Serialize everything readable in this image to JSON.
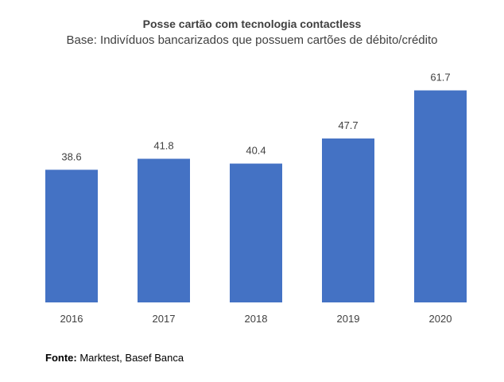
{
  "chart_data": {
    "type": "bar",
    "title": "Posse cartão com tecnologia contactless",
    "subtitle": "Base: Indivíduos bancarizados que possuem cartões de débito/crédito",
    "categories": [
      "2016",
      "2017",
      "2018",
      "2019",
      "2020"
    ],
    "values": [
      38.6,
      41.8,
      40.4,
      47.7,
      61.7
    ],
    "data_labels": [
      "38.6",
      "41.8",
      "40.4",
      "47.7",
      "61.7"
    ],
    "xlabel": "",
    "ylabel": "",
    "ylim": [
      0,
      66
    ],
    "grid": false,
    "legend": "none",
    "bar_color": "#4472C4"
  },
  "source": {
    "label": "Fonte:",
    "text": " Marktest, Basef Banca"
  }
}
